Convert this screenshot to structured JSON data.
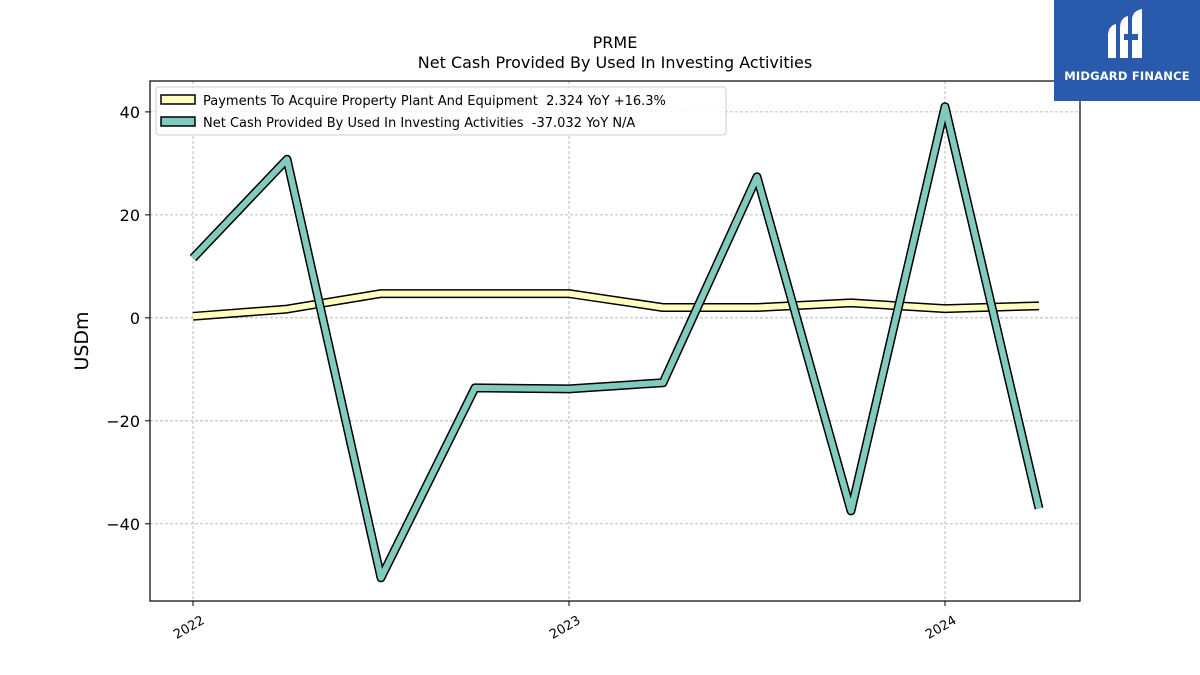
{
  "chart_data": {
    "type": "line",
    "title": "PRME",
    "subtitle": "Net Cash Provided By Used In Investing Activities",
    "ylabel": "USDm",
    "xlabel": "",
    "x": [
      "2022-01",
      "2022-04",
      "2022-07",
      "2022-10",
      "2023-01",
      "2023-04",
      "2023-07",
      "2023-10",
      "2024-01",
      "2024-04"
    ],
    "x_ticks": [
      "2022",
      "2023",
      "2024"
    ],
    "y_ticks": [
      "40",
      "20",
      "0",
      "−20",
      "−40"
    ],
    "y_tick_values": [
      40,
      20,
      0,
      -20,
      -40
    ],
    "ylim": [
      -55,
      46
    ],
    "grid": true,
    "legend_position": "top-left",
    "series": [
      {
        "name": "Payments To Acquire Property Plant And Equipment  2.324 YoY +16.3%",
        "color": "#ffffc0",
        "values": [
          0.3,
          1.7,
          4.7,
          4.7,
          4.7,
          2.0,
          2.0,
          2.9,
          1.8,
          2.324
        ]
      },
      {
        "name": "Net Cash Provided By Used In Investing Activities  -37.032 YoY N/A",
        "color": "#80cbbd",
        "values": [
          11.6,
          30.8,
          -50.5,
          -13.6,
          -13.8,
          -12.6,
          27.4,
          -37.5,
          41.0,
          -37.032
        ]
      }
    ]
  },
  "logo": {
    "text": "MIDGARD FINANCE",
    "background": "#2a5aab"
  }
}
